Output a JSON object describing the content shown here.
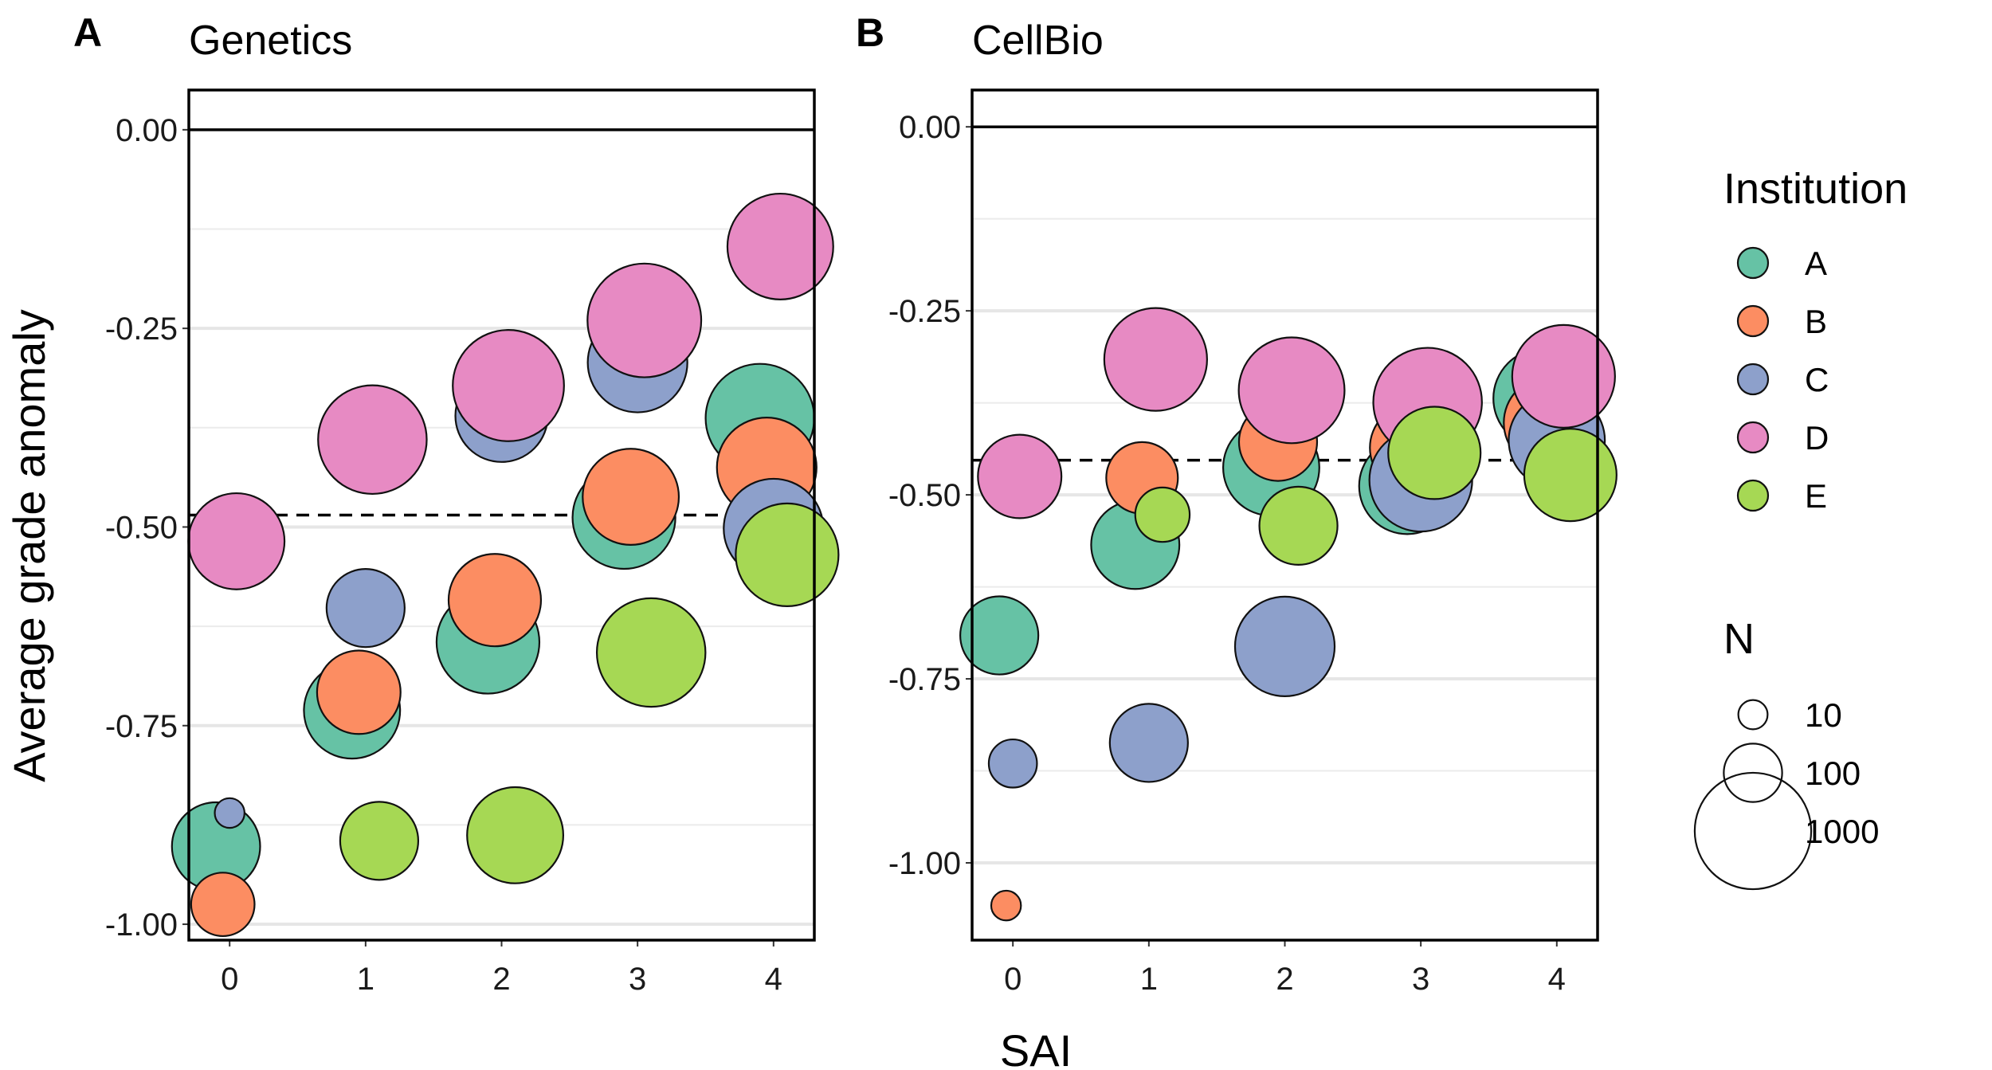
{
  "chart_data": [
    {
      "type": "scatter",
      "panel_letter": "A",
      "title": "Genetics",
      "xlabel": "SAI",
      "ylabel": "Average grade anomaly",
      "xlim": [
        -0.3,
        4.3
      ],
      "ylim": [
        -1.02,
        0.05
      ],
      "x_ticks": [
        0,
        1,
        2,
        3,
        4
      ],
      "x_tick_labels": [
        "0",
        "1",
        "2",
        "3",
        "4"
      ],
      "y_ticks": [
        0.0,
        -0.25,
        -0.5,
        -0.75,
        -1.0
      ],
      "y_tick_labels": [
        "0.00",
        "-0.25",
        "-0.50",
        "-0.75",
        "-1.00"
      ],
      "grid_minor": [
        -0.125,
        -0.375,
        -0.625,
        -0.875
      ],
      "reference_line": 0.0,
      "mean_line": -0.485,
      "points": [
        {
          "institution": "A",
          "sai": 0,
          "value": -0.902,
          "n": 300
        },
        {
          "institution": "B",
          "sai": 0,
          "value": -0.975,
          "n": 100
        },
        {
          "institution": "C",
          "sai": 0,
          "value": -0.86,
          "n": 8
        },
        {
          "institution": "D",
          "sai": 0,
          "value": -0.518,
          "n": 400
        },
        {
          "institution": "A",
          "sai": 1,
          "value": -0.731,
          "n": 400
        },
        {
          "institution": "B",
          "sai": 1,
          "value": -0.708,
          "n": 250
        },
        {
          "institution": "C",
          "sai": 1,
          "value": -0.602,
          "n": 200
        },
        {
          "institution": "D",
          "sai": 1,
          "value": -0.39,
          "n": 600
        },
        {
          "institution": "E",
          "sai": 1,
          "value": -0.895,
          "n": 200
        },
        {
          "institution": "A",
          "sai": 2,
          "value": -0.645,
          "n": 500
        },
        {
          "institution": "B",
          "sai": 2,
          "value": -0.592,
          "n": 350
        },
        {
          "institution": "C",
          "sai": 2,
          "value": -0.36,
          "n": 350
        },
        {
          "institution": "D",
          "sai": 2,
          "value": -0.322,
          "n": 650
        },
        {
          "institution": "E",
          "sai": 2,
          "value": -0.888,
          "n": 400
        },
        {
          "institution": "A",
          "sai": 3,
          "value": -0.488,
          "n": 500
        },
        {
          "institution": "B",
          "sai": 3,
          "value": -0.462,
          "n": 400
        },
        {
          "institution": "C",
          "sai": 3,
          "value": -0.293,
          "n": 450
        },
        {
          "institution": "D",
          "sai": 3,
          "value": -0.24,
          "n": 700
        },
        {
          "institution": "E",
          "sai": 3,
          "value": -0.658,
          "n": 600
        },
        {
          "institution": "A",
          "sai": 4,
          "value": -0.363,
          "n": 600
        },
        {
          "institution": "B",
          "sai": 4,
          "value": -0.425,
          "n": 450
        },
        {
          "institution": "C",
          "sai": 4,
          "value": -0.502,
          "n": 450
        },
        {
          "institution": "D",
          "sai": 4,
          "value": -0.147,
          "n": 550
        },
        {
          "institution": "E",
          "sai": 4,
          "value": -0.535,
          "n": 500
        }
      ]
    },
    {
      "type": "scatter",
      "panel_letter": "B",
      "title": "CellBio",
      "xlabel": "SAI",
      "ylabel": "Average grade anomaly",
      "xlim": [
        -0.3,
        4.3
      ],
      "ylim": [
        -1.105,
        0.05
      ],
      "x_ticks": [
        0,
        1,
        2,
        3,
        4
      ],
      "x_tick_labels": [
        "0",
        "1",
        "2",
        "3",
        "4"
      ],
      "y_ticks": [
        0.0,
        -0.25,
        -0.5,
        -0.75,
        -1.0
      ],
      "y_tick_labels": [
        "0.00",
        "-0.25",
        "-0.50",
        "-0.75",
        "-1.00"
      ],
      "grid_minor": [
        -0.125,
        -0.375,
        -0.625,
        -0.875
      ],
      "reference_line": 0.0,
      "mean_line": -0.453,
      "points": [
        {
          "institution": "A",
          "sai": 0,
          "value": -0.691,
          "n": 200
        },
        {
          "institution": "B",
          "sai": 0,
          "value": -1.058,
          "n": 8
        },
        {
          "institution": "C",
          "sai": 0,
          "value": -0.865,
          "n": 40
        },
        {
          "institution": "D",
          "sai": 0,
          "value": -0.475,
          "n": 250
        },
        {
          "institution": "A",
          "sai": 1,
          "value": -0.568,
          "n": 300
        },
        {
          "institution": "B",
          "sai": 1,
          "value": -0.477,
          "n": 150
        },
        {
          "institution": "C",
          "sai": 1,
          "value": -0.837,
          "n": 200
        },
        {
          "institution": "D",
          "sai": 1,
          "value": -0.316,
          "n": 500
        },
        {
          "institution": "E",
          "sai": 1,
          "value": -0.527,
          "n": 60
        },
        {
          "institution": "A",
          "sai": 2,
          "value": -0.463,
          "n": 400
        },
        {
          "institution": "B",
          "sai": 2,
          "value": -0.428,
          "n": 200
        },
        {
          "institution": "C",
          "sai": 2,
          "value": -0.706,
          "n": 450
        },
        {
          "institution": "D",
          "sai": 2,
          "value": -0.358,
          "n": 550
        },
        {
          "institution": "E",
          "sai": 2,
          "value": -0.542,
          "n": 200
        },
        {
          "institution": "A",
          "sai": 3,
          "value": -0.488,
          "n": 400
        },
        {
          "institution": "B",
          "sai": 3,
          "value": -0.436,
          "n": 300
        },
        {
          "institution": "C",
          "sai": 3,
          "value": -0.48,
          "n": 500
        },
        {
          "institution": "D",
          "sai": 3,
          "value": -0.374,
          "n": 600
        },
        {
          "institution": "E",
          "sai": 3,
          "value": -0.443,
          "n": 350
        },
        {
          "institution": "A",
          "sai": 4,
          "value": -0.369,
          "n": 450
        },
        {
          "institution": "B",
          "sai": 4,
          "value": -0.402,
          "n": 350
        },
        {
          "institution": "C",
          "sai": 4,
          "value": -0.426,
          "n": 400
        },
        {
          "institution": "D",
          "sai": 4,
          "value": -0.339,
          "n": 500
        },
        {
          "institution": "E",
          "sai": 4,
          "value": -0.473,
          "n": 350
        }
      ]
    }
  ],
  "shared": {
    "xlabel": "SAI",
    "ylabel": "Average grade anomaly"
  },
  "legend": {
    "placement": "right",
    "color_title": "Institution",
    "colors": [
      {
        "label": "A",
        "color": "#66c2a5"
      },
      {
        "label": "B",
        "color": "#fc8d62"
      },
      {
        "label": "C",
        "color": "#8da0cb"
      },
      {
        "label": "D",
        "color": "#e78ac3"
      },
      {
        "label": "E",
        "color": "#a6d854"
      }
    ],
    "size_title": "N",
    "sizes": [
      {
        "label": "10",
        "n": 10
      },
      {
        "label": "100",
        "n": 100
      },
      {
        "label": "1000",
        "n": 1000
      }
    ]
  }
}
